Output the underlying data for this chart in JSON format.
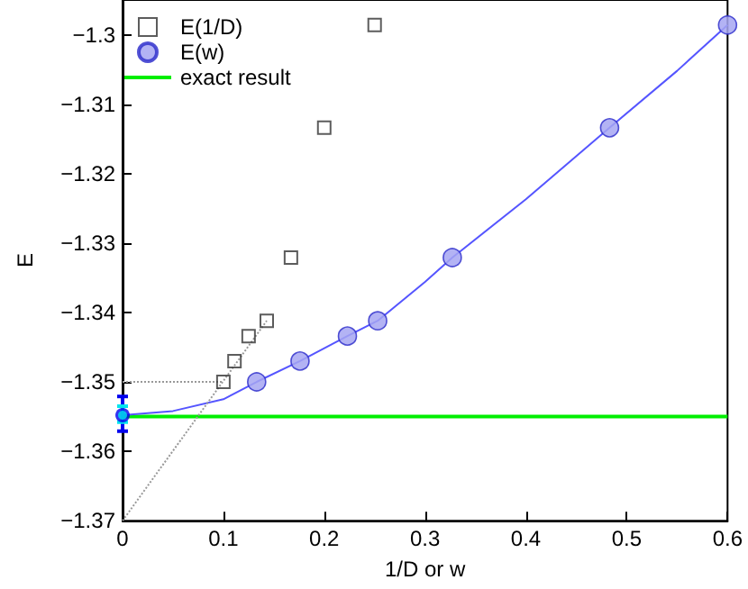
{
  "chart_data": {
    "type": "scatter",
    "xlabel": "1/D or w",
    "ylabel": "E",
    "xlim": [
      0,
      0.6
    ],
    "xticks": [
      0,
      0.1,
      0.2,
      0.3,
      0.4,
      0.5,
      0.6
    ],
    "ylim": [
      -1.37,
      -1.295
    ],
    "yticks": [
      -1.37,
      -1.36,
      -1.35,
      -1.34,
      -1.33,
      -1.32,
      -1.31,
      -1.3
    ],
    "grid": false,
    "legend": "top left",
    "series": [
      {
        "name": "E(1/D)",
        "marker": "square",
        "color": "#333333",
        "x": [
          0.1,
          0.111,
          0.125,
          0.143,
          0.167,
          0.2,
          0.25
        ],
        "values": [
          -1.35,
          -1.347,
          -1.3434,
          -1.3412,
          -1.3321,
          -1.3134,
          -1.2986
        ]
      },
      {
        "name": "E(w)",
        "marker": "circle",
        "color": "#a6a6f2",
        "x": [
          0.133,
          0.176,
          0.223,
          0.253,
          0.327,
          0.483,
          0.6
        ],
        "values": [
          -1.35,
          -1.347,
          -1.3434,
          -1.3412,
          -1.3321,
          -1.3134,
          -1.2986
        ]
      },
      {
        "name": "exact result",
        "type": "line",
        "marker": "none",
        "line_style": "solid",
        "color": "#00ee00",
        "x": [
          0,
          0.6
        ],
        "values": [
          -1.355,
          -1.355
        ]
      },
      {
        "type": "line",
        "marker": "none",
        "line_style": "solid",
        "color": "#5555ff",
        "x": [
          0,
          0.05,
          0.1,
          0.133,
          0.176,
          0.223,
          0.253,
          0.3,
          0.327,
          0.4,
          0.483,
          0.55,
          0.6
        ],
        "values": [
          -1.3548,
          -1.3542,
          -1.3525,
          -1.35,
          -1.347,
          -1.3434,
          -1.3412,
          -1.3356,
          -1.3321,
          -1.3237,
          -1.3134,
          -1.3052,
          -1.2986
        ]
      },
      {
        "type": "line",
        "marker": "none",
        "line_style": "dotted",
        "color": "#999999",
        "x": [
          0,
          0.1
        ],
        "values": [
          -1.35,
          -1.35
        ]
      },
      {
        "type": "line",
        "marker": "none",
        "line_style": "dotted",
        "color": "#999999",
        "x": [
          0,
          0.143
        ],
        "values": [
          -1.37,
          -1.3412
        ]
      },
      {
        "marker": "circle",
        "color": "#0000ee",
        "x": [
          0
        ],
        "values": [
          -1.3548
        ],
        "errors": [
          [
            -1.3571,
            -1.3521
          ]
        ]
      },
      {
        "marker": "circle",
        "color": "#00e5ee",
        "x": [
          0
        ],
        "values": [
          -1.3548
        ],
        "errors": [
          [
            -1.3558,
            -1.3535
          ]
        ]
      }
    ]
  }
}
